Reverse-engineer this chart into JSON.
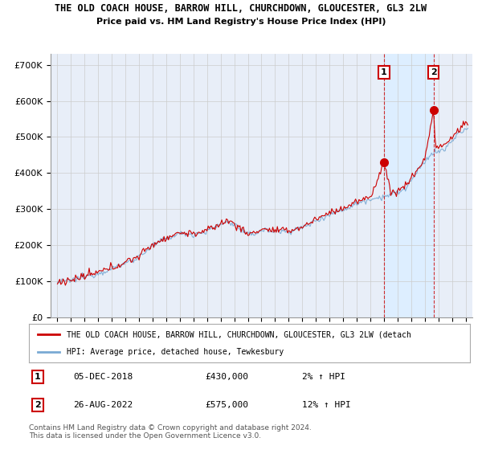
{
  "title_line1": "THE OLD COACH HOUSE, BARROW HILL, CHURCHDOWN, GLOUCESTER, GL3 2LW",
  "title_line2": "Price paid vs. HM Land Registry's House Price Index (HPI)",
  "ylabel_ticks": [
    "£0",
    "£100K",
    "£200K",
    "£300K",
    "£400K",
    "£500K",
    "£600K",
    "£700K"
  ],
  "ytick_values": [
    0,
    100000,
    200000,
    300000,
    400000,
    500000,
    600000,
    700000
  ],
  "ylim": [
    0,
    730000
  ],
  "xlim_start": 1994.5,
  "xlim_end": 2025.5,
  "marker1_x": 2019.0,
  "marker1_y": 430000,
  "marker2_x": 2022.65,
  "marker2_y": 575000,
  "legend_line1": "THE OLD COACH HOUSE, BARROW HILL, CHURCHDOWN, GLOUCESTER, GL3 2LW (detach",
  "legend_line2": "HPI: Average price, detached house, Tewkesbury",
  "annotation1_num": "1",
  "annotation1_date": "05-DEC-2018",
  "annotation1_price": "£430,000",
  "annotation1_hpi": "2% ↑ HPI",
  "annotation2_num": "2",
  "annotation2_date": "26-AUG-2022",
  "annotation2_price": "£575,000",
  "annotation2_hpi": "12% ↑ HPI",
  "footer": "Contains HM Land Registry data © Crown copyright and database right 2024.\nThis data is licensed under the Open Government Licence v3.0.",
  "hpi_color": "#7aaad4",
  "price_color": "#cc0000",
  "shade_color": "#ddeeff",
  "grid_color": "#cccccc",
  "background_color": "#ffffff",
  "plot_bg_color": "#e8eef8"
}
